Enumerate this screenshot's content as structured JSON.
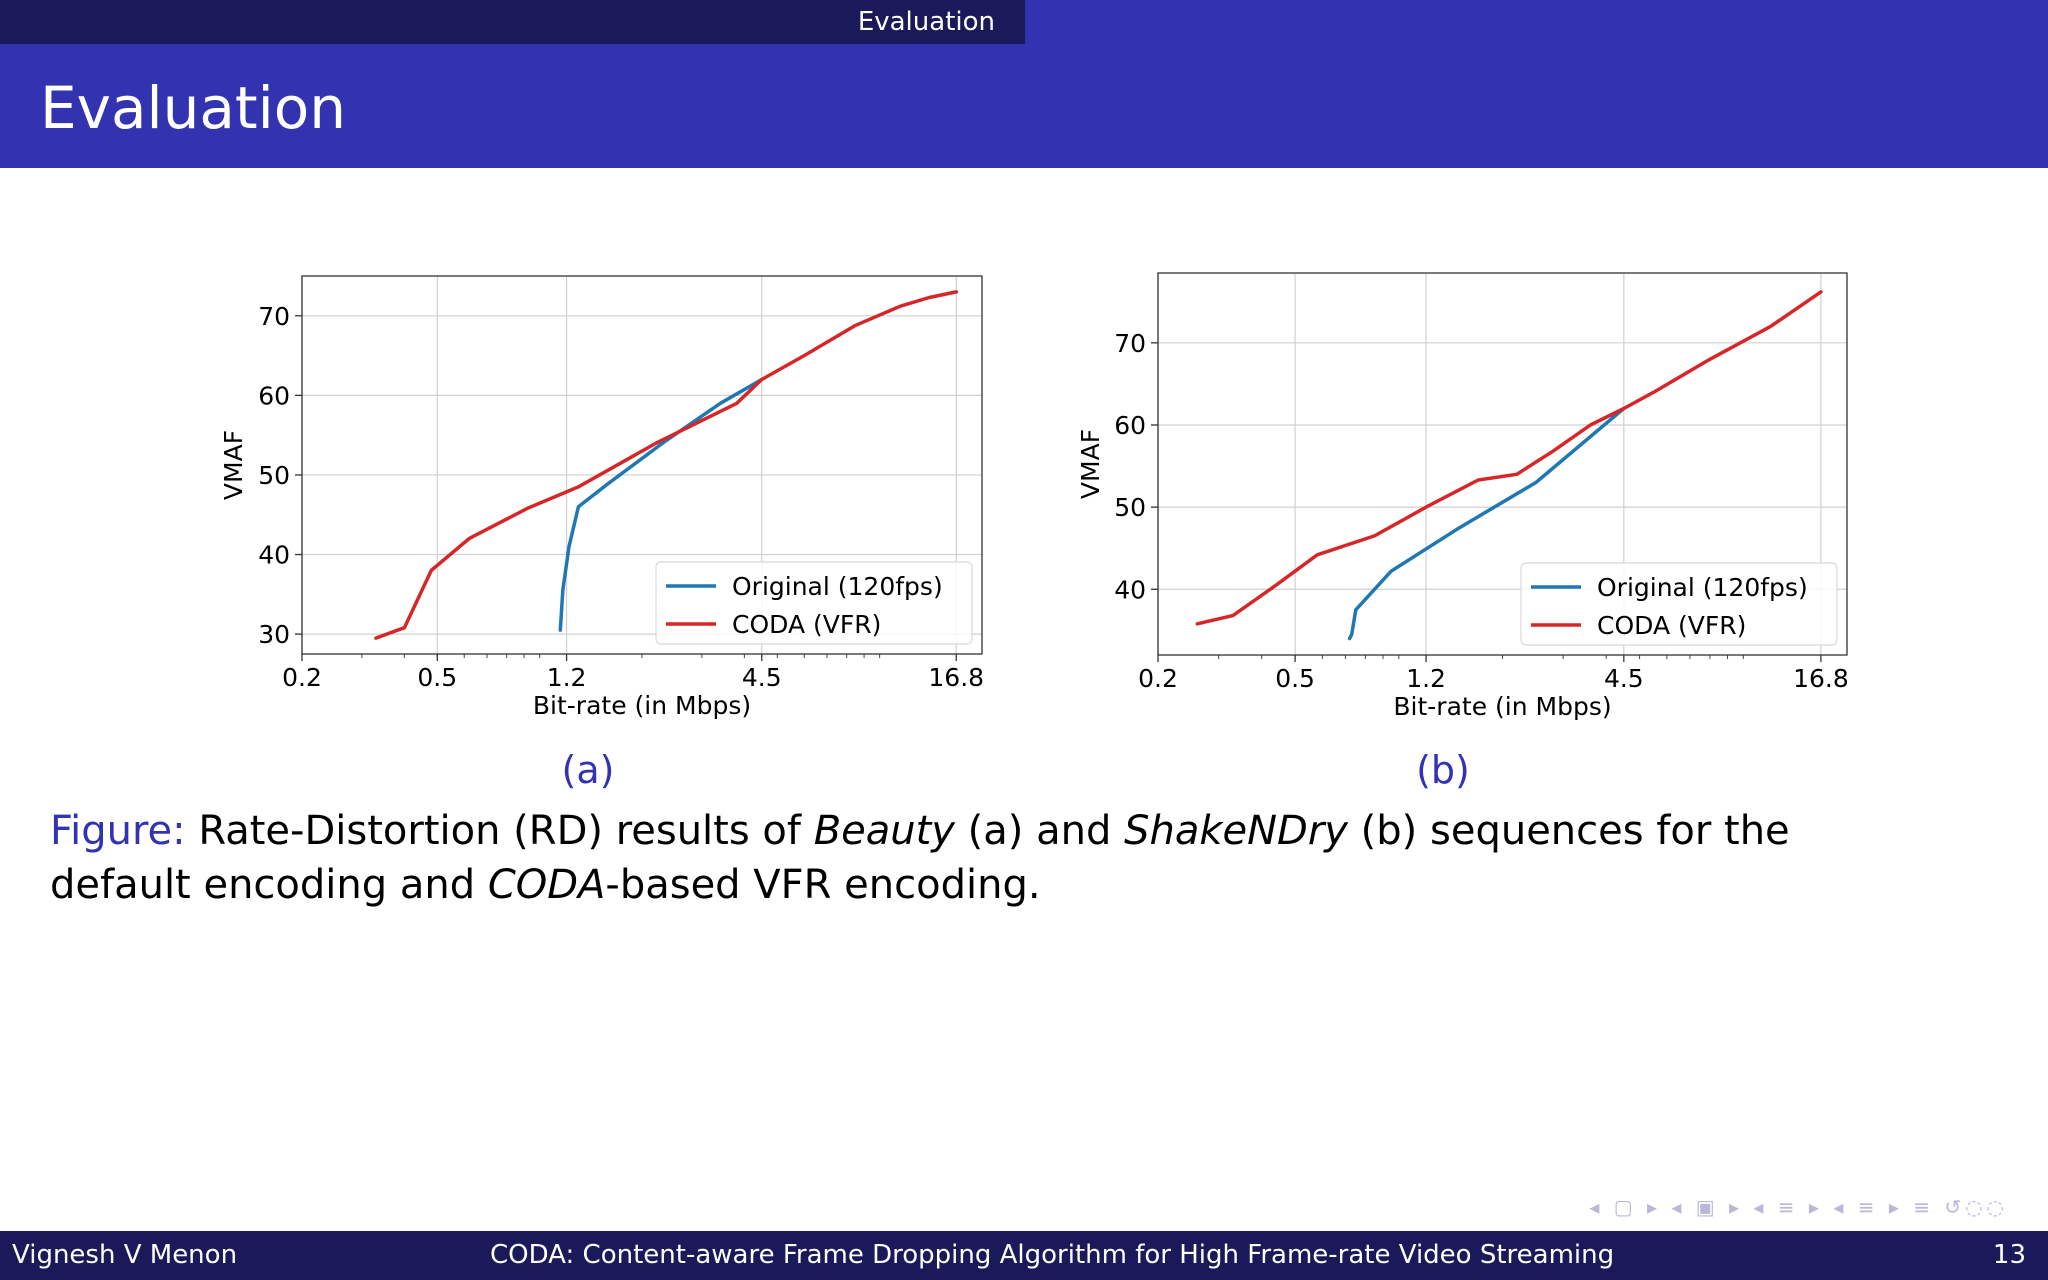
{
  "header": {
    "section": "Evaluation"
  },
  "slide": {
    "title": "Evaluation"
  },
  "subcaptions": {
    "a": "(a)",
    "b": "(b)"
  },
  "caption": {
    "label": "Figure:",
    "part1": " Rate-Distortion (RD) results of ",
    "em1": "Beauty",
    "part2": " (a) and ",
    "em2": "ShakeNDry",
    "part3": " (b) sequences for the default encoding and ",
    "em3": "CODA",
    "part4": "-based VFR encoding."
  },
  "footer": {
    "author": "Vignesh V Menon",
    "title": "CODA: Content-aware Frame Dropping Algorithm for High Frame-rate Video Streaming",
    "page": "13"
  },
  "nav": {
    "symbols": "◂ ▢ ▸ ◂ ▣ ▸ ◂ ≡ ▸ ◂ ≡ ▸ ≡ ↺◌◌"
  },
  "colors": {
    "original": "#1f77b4",
    "coda": "#d62728",
    "accent": "#3333b2"
  },
  "chart_data": [
    {
      "type": "line",
      "xscale": "log",
      "xlabel": "Bit-rate (in Mbps)",
      "ylabel": "VMAF",
      "xticks": [
        0.2,
        0.5,
        1.2,
        4.5,
        16.8
      ],
      "xtick_labels": [
        "0.2",
        "0.5",
        "1.2",
        "4.5",
        "16.8"
      ],
      "yticks": [
        30,
        40,
        50,
        60,
        70
      ],
      "xlim": [
        0.2,
        20
      ],
      "ylim": [
        27.5,
        75
      ],
      "grid": true,
      "legend": "lower-right",
      "series": [
        {
          "name": "Original (120fps)",
          "x": [
            1.15,
            1.17,
            1.22,
            1.3,
            1.6,
            2.3,
            3.4,
            4.5
          ],
          "y": [
            30.5,
            35.5,
            41,
            46,
            49,
            54,
            59,
            62
          ]
        },
        {
          "name": "CODA (VFR)",
          "x": [
            0.33,
            0.4,
            0.48,
            0.62,
            0.92,
            1.3,
            2.2,
            3.8,
            4.5,
            6.0,
            8.5,
            11.5,
            14.0,
            16.8
          ],
          "y": [
            29.5,
            30.8,
            38,
            42,
            45.8,
            48.5,
            54,
            59,
            62,
            65,
            68.8,
            71.2,
            72.3,
            73
          ]
        }
      ]
    },
    {
      "type": "line",
      "xscale": "log",
      "xlabel": "Bit-rate (in Mbps)",
      "ylabel": "VMAF",
      "xticks": [
        0.2,
        0.5,
        1.2,
        4.5,
        16.8
      ],
      "xtick_labels": [
        "0.2",
        "0.5",
        "1.2",
        "4.5",
        "16.8"
      ],
      "yticks": [
        40,
        50,
        60,
        70
      ],
      "xlim": [
        0.2,
        20
      ],
      "ylim": [
        32,
        78.5
      ],
      "grid": true,
      "legend": "lower-right",
      "series": [
        {
          "name": "Original (120fps)",
          "x": [
            0.72,
            0.73,
            0.75,
            0.95,
            1.5,
            2.5,
            4.5
          ],
          "y": [
            34,
            34.5,
            37.5,
            42.2,
            47.5,
            53,
            62
          ]
        },
        {
          "name": "CODA (VFR)",
          "x": [
            0.26,
            0.33,
            0.44,
            0.58,
            0.85,
            1.2,
            1.7,
            2.2,
            2.8,
            3.6,
            4.5,
            5.5,
            8.0,
            12.0,
            16.8
          ],
          "y": [
            35.8,
            36.8,
            40.5,
            44.2,
            46.5,
            50,
            53.3,
            54,
            56.8,
            60,
            62,
            64,
            68,
            72,
            76.2
          ]
        }
      ]
    }
  ]
}
